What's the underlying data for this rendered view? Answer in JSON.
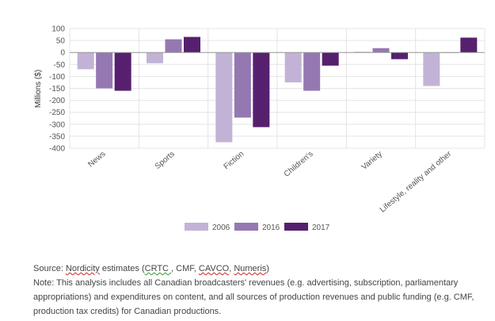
{
  "chart_data": {
    "type": "bar",
    "categories": [
      "News",
      "Sports",
      "Fiction",
      "Children's",
      "Variety",
      "Lifestyle, reality and other"
    ],
    "series": [
      {
        "name": "2006",
        "color": "#c2b3d6",
        "values": [
          -70,
          -45,
          -375,
          -125,
          3,
          -140
        ]
      },
      {
        "name": "2016",
        "color": "#9578b2",
        "values": [
          -150,
          55,
          -272,
          -160,
          18,
          0
        ]
      },
      {
        "name": "2017",
        "color": "#56206f",
        "values": [
          -160,
          65,
          -312,
          -55,
          -28,
          62
        ]
      }
    ],
    "title": "",
    "xlabel": "",
    "ylabel": "Millions ($)",
    "ylim": [
      -400,
      100
    ],
    "yticks": [
      100,
      50,
      0,
      -50,
      -100,
      -150,
      -200,
      -250,
      -300,
      -350,
      -400
    ],
    "grid": true,
    "legend_position": "bottom-center"
  },
  "source": {
    "prefix": "Source: ",
    "nordicity": "Nordicity",
    "mid1": " estimates (",
    "crtc": "CRTC ",
    "mid2": ", CMF, ",
    "cavco": "CAVCO",
    "mid3": ", ",
    "numeris": "Numeris",
    "suffix": ")"
  },
  "note": "Note: This analysis includes all Canadian broadcasters' revenues (e.g. advertising, subscription, parliamentary appropriations) and expenditures on content, and all sources of production revenues and public funding (e.g. CMF, production tax credits) for Canadian productions."
}
